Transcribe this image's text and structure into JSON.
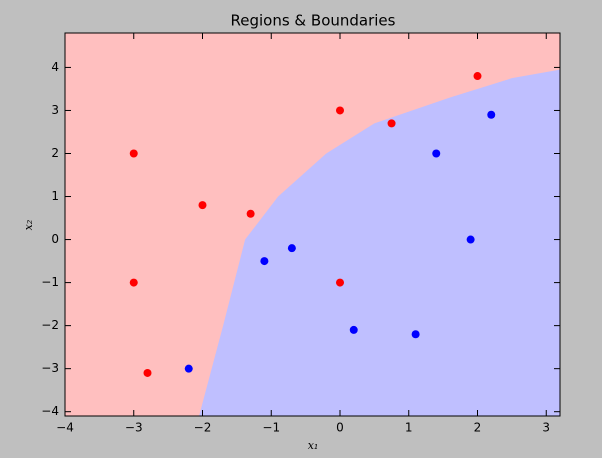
{
  "chart_data": {
    "type": "scatter",
    "title": "Regions & Boundaries",
    "x_label": "x₁",
    "y_label": "x₂",
    "xlim": [
      -4,
      3.2
    ],
    "ylim": [
      -4.1,
      4.8
    ],
    "xticks": [
      {
        "value": -4,
        "label": "−4"
      },
      {
        "value": -3,
        "label": "−3"
      },
      {
        "value": -2,
        "label": "−2"
      },
      {
        "value": -1,
        "label": "−1"
      },
      0,
      1,
      2,
      3
    ],
    "yticks": [
      {
        "value": -4,
        "label": "−4"
      },
      {
        "value": -3,
        "label": "−3"
      },
      {
        "value": -2,
        "label": "−2"
      },
      {
        "value": -1,
        "label": "−1"
      },
      0,
      1,
      2,
      3,
      4
    ],
    "regions": {
      "upper_color": "#ffbfbf",
      "lower_color": "#bfbfff"
    },
    "boundary": {
      "x": [
        -2.05,
        -1.7,
        -1.38,
        -0.9,
        -0.2,
        0.5,
        1.6,
        2.5,
        3.2
      ],
      "y": [
        -4.1,
        -2,
        0,
        1,
        2,
        2.7,
        3.3,
        3.75,
        3.95
      ]
    },
    "series": [
      {
        "color": "#ff0000",
        "x": [
          -3,
          -2,
          -1.3,
          -3,
          -2.8,
          0,
          0.75,
          2,
          0
        ],
        "values": [
          2,
          0.8,
          0.6,
          -1,
          -3.1,
          3,
          2.7,
          3.8,
          -1
        ]
      },
      {
        "color": "#0000ff",
        "x": [
          2.2,
          1.4,
          1.9,
          -0.7,
          -1.1,
          0.2,
          1.1,
          -2.2
        ],
        "values": [
          2.9,
          2,
          0,
          -0.2,
          -0.5,
          -2.1,
          -2.2,
          -3
        ]
      }
    ]
  }
}
